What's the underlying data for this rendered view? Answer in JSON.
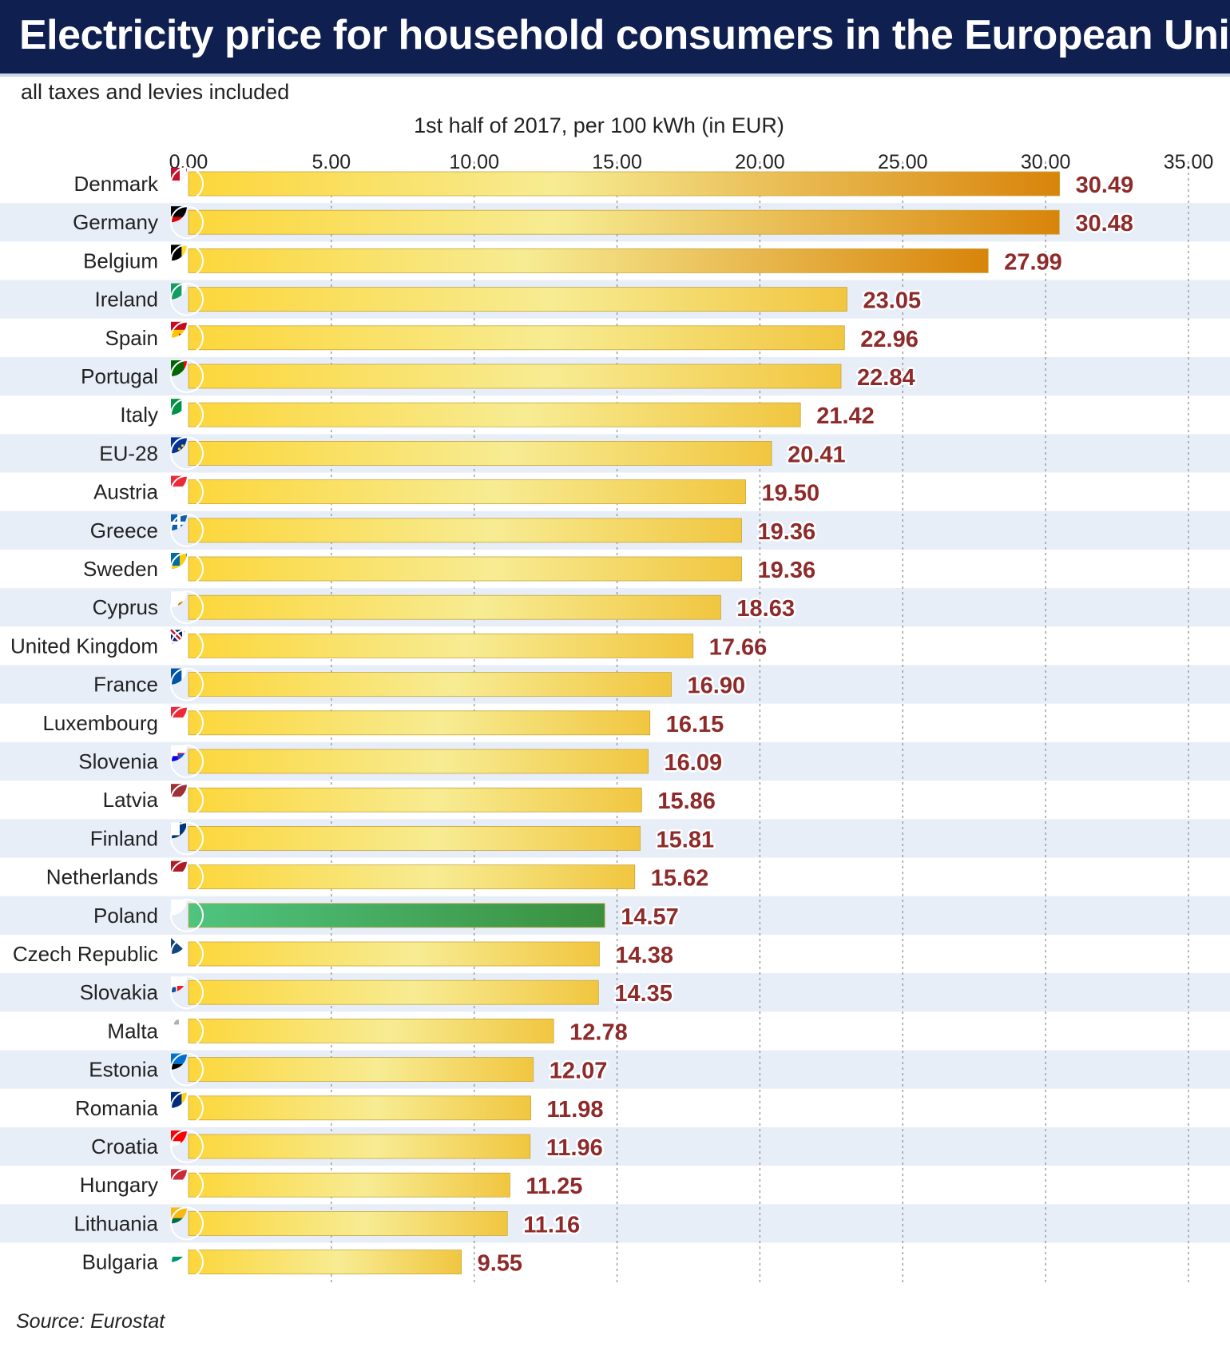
{
  "header": {
    "title": "Electricity price for household consumers in the European Union",
    "subtitle": "all taxes and levies included"
  },
  "footer": {
    "source": "Source: Eurostat"
  },
  "colors": {
    "title_bg": "#0f1f4f",
    "bar": [
      "#fcd63a",
      "#f7ec93",
      "#d8840a"
    ],
    "highlight_bar": [
      "#4fc47f",
      "#3b8f3f"
    ],
    "value_label": "#8e2a2a",
    "row_stripe": "#e8eef8",
    "gridline": "#8a8a8a"
  },
  "chart_data": {
    "type": "bar",
    "orientation": "horizontal",
    "xlabel": "1st half of 2017, per 100 kWh (in EUR)",
    "xlim": [
      0,
      35
    ],
    "xticks": [
      "0.00",
      "5.00",
      "10.00",
      "15.00",
      "20.00",
      "25.00",
      "30.00",
      "35.00"
    ],
    "grid": true,
    "highlight": "Poland",
    "categories": [
      "Denmark",
      "Germany",
      "Belgium",
      "Ireland",
      "Spain",
      "Portugal",
      "Italy",
      "EU-28",
      "Austria",
      "Greece",
      "Sweden",
      "Cyprus",
      "United Kingdom",
      "France",
      "Luxembourg",
      "Slovenia",
      "Latvia",
      "Finland",
      "Netherlands",
      "Poland",
      "Czech Republic",
      "Slovakia",
      "Malta",
      "Estonia",
      "Romania",
      "Croatia",
      "Hungary",
      "Lithuania",
      "Bulgaria"
    ],
    "values": [
      30.49,
      30.48,
      27.99,
      23.05,
      22.96,
      22.84,
      21.42,
      20.41,
      19.5,
      19.36,
      19.36,
      18.63,
      17.66,
      16.9,
      16.15,
      16.09,
      15.86,
      15.81,
      15.62,
      14.57,
      14.38,
      14.35,
      12.78,
      12.07,
      11.98,
      11.96,
      11.25,
      11.16,
      9.55
    ],
    "value_labels": [
      "30.49",
      "30.48",
      "27.99",
      "23.05",
      "22.96",
      "22.84",
      "21.42",
      "20.41",
      "19.50",
      "19.36",
      "19.36",
      "18.63",
      "17.66",
      "16.90",
      "16.15",
      "16.09",
      "15.86",
      "15.81",
      "15.62",
      "14.57",
      "14.38",
      "14.35",
      "12.78",
      "12.07",
      "11.98",
      "11.96",
      "11.25",
      "11.16",
      "9.55"
    ],
    "flag_icons": [
      "flag-denmark-icon",
      "flag-germany-icon",
      "flag-belgium-icon",
      "flag-ireland-icon",
      "flag-spain-icon",
      "flag-portugal-icon",
      "flag-italy-icon",
      "flag-eu-icon",
      "flag-austria-icon",
      "flag-greece-icon",
      "flag-sweden-icon",
      "flag-cyprus-icon",
      "flag-united-kingdom-icon",
      "flag-france-icon",
      "flag-luxembourg-icon",
      "flag-slovenia-icon",
      "flag-latvia-icon",
      "flag-finland-icon",
      "flag-netherlands-icon",
      "flag-poland-icon",
      "flag-czech-republic-icon",
      "flag-slovakia-icon",
      "flag-malta-icon",
      "flag-estonia-icon",
      "flag-romania-icon",
      "flag-croatia-icon",
      "flag-hungary-icon",
      "flag-lithuania-icon",
      "flag-bulgaria-icon"
    ]
  }
}
